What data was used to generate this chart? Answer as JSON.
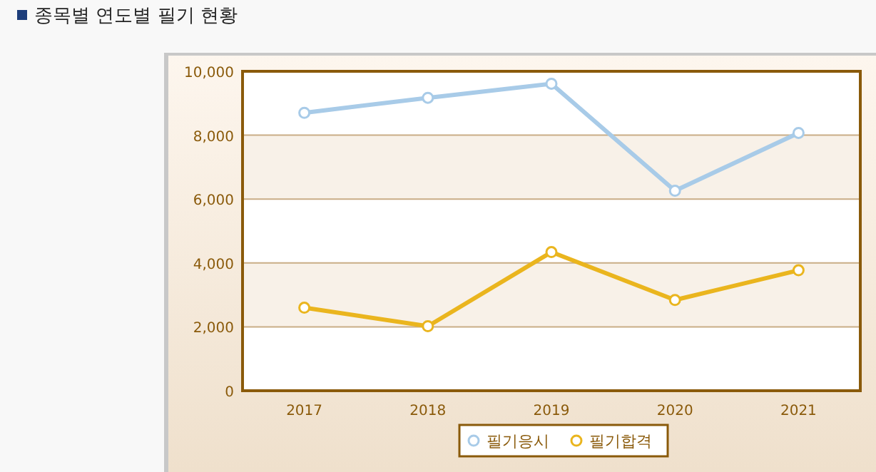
{
  "chart_data": {
    "type": "line",
    "title": "종목별 연도별 필기 현황",
    "categories": [
      "2017",
      "2018",
      "2019",
      "2020",
      "2021"
    ],
    "series": [
      {
        "name": "필기응시",
        "color": "#a8cbe8",
        "values": [
          8700,
          9170,
          9610,
          6260,
          8070
        ]
      },
      {
        "name": "필기합격",
        "color": "#eab51e",
        "values": [
          2600,
          2020,
          4340,
          2840,
          3770
        ]
      }
    ],
    "ylim": [
      0,
      10000
    ],
    "yticks": [
      {
        "value": 0,
        "label": "0"
      },
      {
        "value": 2000,
        "label": "2,000"
      },
      {
        "value": 4000,
        "label": "4,000"
      },
      {
        "value": 6000,
        "label": "6,000"
      },
      {
        "value": 8000,
        "label": "8,000"
      },
      {
        "value": 10000,
        "label": "10,000"
      }
    ],
    "grid": "y",
    "legend": "bottom",
    "marker": "circle",
    "line_style": "solid"
  }
}
